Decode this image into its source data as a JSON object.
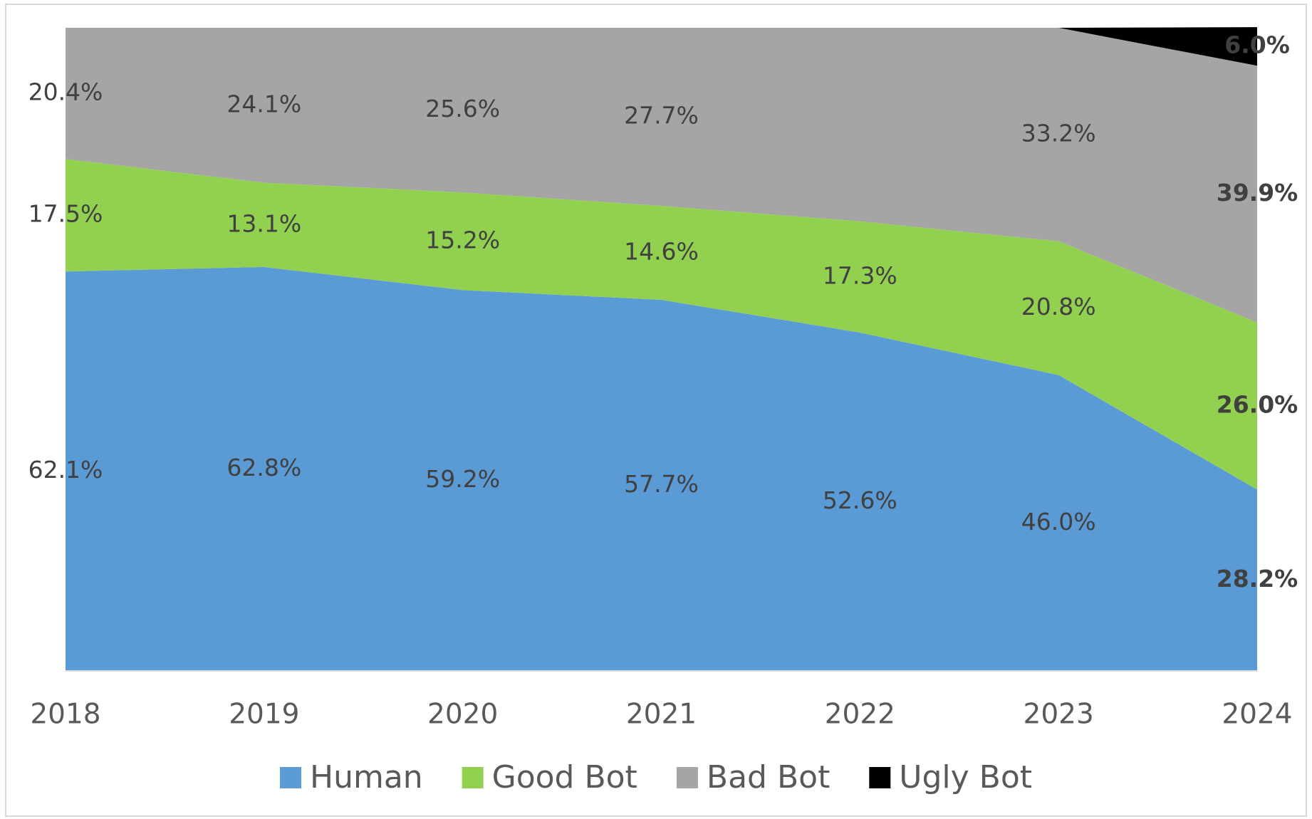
{
  "chart_data": {
    "type": "stacked_area",
    "categories": [
      "2018",
      "2019",
      "2020",
      "2021",
      "2022",
      "2023",
      "2024"
    ],
    "ylim": [
      0,
      100
    ],
    "legend": "bottom",
    "series": [
      {
        "name": "Human",
        "color": "#5b9bd5",
        "values": [
          62.1,
          62.8,
          59.2,
          57.7,
          52.6,
          46.0,
          28.2
        ],
        "value_labels": [
          "62.1%",
          "62.8%",
          "59.2%",
          "57.7%",
          "52.6%",
          "46.0%",
          "28.2%"
        ]
      },
      {
        "name": "Good Bot",
        "color": "#92d050",
        "values": [
          17.5,
          13.1,
          15.2,
          14.6,
          17.3,
          20.8,
          26.0
        ],
        "value_labels": [
          "17.5%",
          "13.1%",
          "15.2%",
          "14.6%",
          "17.3%",
          "20.8%",
          "26.0%"
        ]
      },
      {
        "name": "Bad Bot",
        "color": "#a5a5a5",
        "values": [
          20.4,
          24.1,
          25.6,
          27.7,
          30.1,
          33.2,
          39.9
        ],
        "value_labels": [
          "20.4%",
          "24.1%",
          "25.6%",
          "27.7%",
          null,
          "33.2%",
          "39.9%"
        ]
      },
      {
        "name": "Ugly Bot",
        "color": "#000000",
        "values": [
          0,
          0,
          0,
          0,
          0,
          0,
          6.0
        ],
        "value_labels": [
          null,
          null,
          null,
          null,
          null,
          null,
          "6.0%"
        ]
      }
    ]
  }
}
